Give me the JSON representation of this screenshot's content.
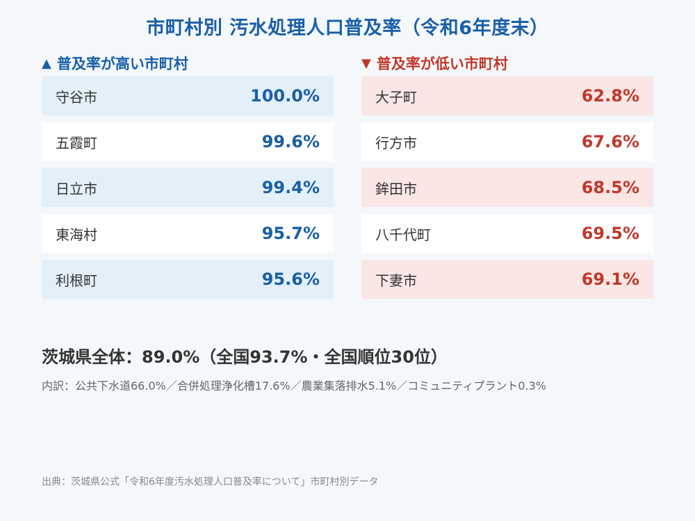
{
  "title": "市町村別 汚水処理人口普及率（令和6年度末）",
  "high": {
    "icon": "▲",
    "heading": "普及率が高い市町村",
    "rows": [
      {
        "name": "守谷市",
        "value": "100.0%"
      },
      {
        "name": "五霞町",
        "value": "99.6%"
      },
      {
        "name": "日立市",
        "value": "99.4%"
      },
      {
        "name": "東海村",
        "value": "95.7%"
      },
      {
        "name": "利根町",
        "value": "95.6%"
      }
    ]
  },
  "low": {
    "icon": "▼",
    "heading": "普及率が低い市町村",
    "rows": [
      {
        "name": "大子町",
        "value": "62.8%"
      },
      {
        "name": "行方市",
        "value": "67.6%"
      },
      {
        "name": "鉾田市",
        "value": "68.5%"
      },
      {
        "name": "八千代町",
        "value": "69.5%"
      },
      {
        "name": "下妻市",
        "value": "69.1%"
      }
    ]
  },
  "summary": "茨城県全体：89.0%（全国93.7%・全国順位30位）",
  "breakdown": "内訳：公共下水道66.0%／合併処理浄化槽17.6%／農業集落排水5.1%／コミュニティプラント0.3%",
  "source": "出典：茨城県公式「令和6年度汚水処理人口普及率について」市町村別データ",
  "colors": {
    "accent_blue": "#1a5fa8",
    "accent_red": "#c0392b",
    "shade_blue": "#e3f0fa",
    "shade_red": "#fbe6e6"
  }
}
